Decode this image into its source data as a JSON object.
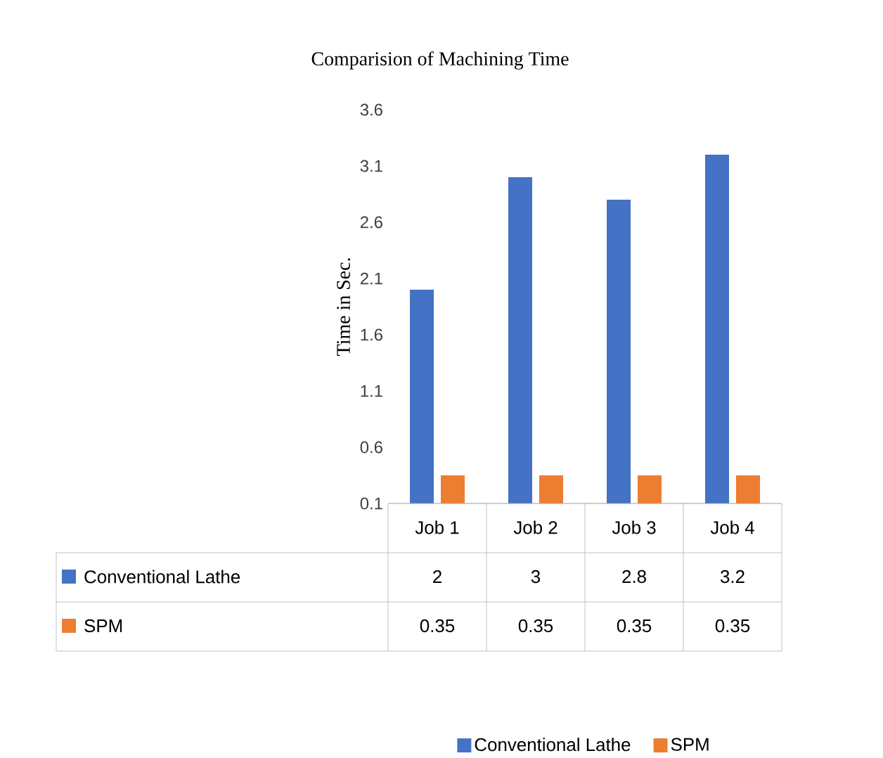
{
  "chart_data": {
    "type": "bar",
    "title": "Comparision of Machining Time",
    "ylabel": "Time in Sec.",
    "categories": [
      "Job 1",
      "Job 2",
      "Job 3",
      "Job 4"
    ],
    "series": [
      {
        "name": "Conventional Lathe",
        "color": "#4472c4",
        "values": [
          2,
          3,
          2.8,
          3.2
        ]
      },
      {
        "name": "SPM",
        "color": "#ed7d31",
        "values": [
          0.35,
          0.35,
          0.35,
          0.35
        ]
      }
    ],
    "ylim": [
      0.1,
      3.6
    ],
    "yticks": [
      0.1,
      0.6,
      1.1,
      1.6,
      2.1,
      2.6,
      3.1,
      3.6
    ],
    "data_labels": true,
    "legend": "bottom",
    "grid": false
  }
}
